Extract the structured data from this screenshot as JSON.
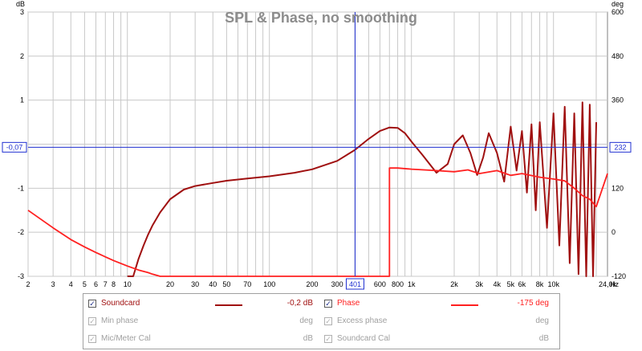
{
  "chart_data": {
    "type": "line",
    "title": "SPL & Phase, no smoothing",
    "xlabel": "Hz",
    "ylabel_left": "dB",
    "ylabel_right": "deg",
    "x_scale": "log",
    "xlim": [
      2,
      24000
    ],
    "ylim_left": [
      -3,
      3
    ],
    "ylim_right": [
      -120,
      600
    ],
    "grid": true,
    "x_ticks": [
      2,
      3,
      4,
      5,
      6,
      7,
      8,
      10,
      20,
      30,
      40,
      50,
      70,
      100,
      200,
      300,
      401,
      600,
      800,
      1000,
      2000,
      3000,
      4000,
      5000,
      6000,
      8000,
      10000,
      24000
    ],
    "x_tick_labels": [
      "2",
      "3",
      "4",
      "5",
      "6",
      "7",
      "8",
      "10",
      "20",
      "30",
      "40",
      "50",
      "70",
      "100",
      "200",
      "300",
      "401",
      "600",
      "800",
      "1k",
      "2k",
      "3k",
      "4k",
      "5k",
      "6k",
      "8k",
      "10k",
      "24,0k"
    ],
    "y_left_ticks": [
      3,
      2,
      1,
      0,
      -1,
      -2,
      -3
    ],
    "y_left_tick_labels": [
      "3",
      "2",
      "1",
      "",
      "-1",
      "-2",
      "-3"
    ],
    "y_right_ticks": [
      600,
      480,
      360,
      232,
      120,
      0,
      -120
    ],
    "y_right_tick_labels": [
      "600",
      "480",
      "360",
      "232",
      "120",
      "0",
      "-120"
    ],
    "cursor": {
      "x": 401,
      "y_left_label": "-0,07",
      "y_right_label": "232",
      "y_value": -0.07
    },
    "series": [
      {
        "name": "Soundcard",
        "axis": "left",
        "color": "#a01010",
        "x": [
          10,
          11,
          12,
          13,
          14,
          15,
          17,
          20,
          25,
          30,
          40,
          50,
          70,
          100,
          150,
          200,
          300,
          400,
          500,
          600,
          700,
          800,
          900,
          1000,
          1200,
          1500,
          1800,
          2000,
          2300,
          2600,
          2900,
          3200,
          3500,
          4000,
          4500,
          5000,
          5500,
          6000,
          6500,
          7000,
          7500,
          8000,
          9000,
          10000,
          11000,
          12000,
          13000,
          14000,
          15000,
          16000,
          17000,
          18000,
          19000,
          20000
        ],
        "y": [
          -3.35,
          -3.0,
          -2.6,
          -2.3,
          -2.05,
          -1.85,
          -1.55,
          -1.25,
          -1.03,
          -0.95,
          -0.88,
          -0.83,
          -0.78,
          -0.73,
          -0.65,
          -0.57,
          -0.38,
          -0.13,
          0.12,
          0.3,
          0.38,
          0.37,
          0.25,
          0.06,
          -0.25,
          -0.65,
          -0.45,
          0.0,
          0.2,
          -0.2,
          -0.7,
          -0.3,
          0.25,
          -0.2,
          -0.85,
          0.4,
          -0.6,
          0.3,
          -1.1,
          0.45,
          -1.5,
          0.5,
          -1.9,
          0.7,
          -2.3,
          0.85,
          -2.7,
          0.7,
          -2.95,
          0.95,
          -3.0,
          0.9,
          -3.0,
          0.5
        ]
      },
      {
        "name": "Phase",
        "axis": "right",
        "color": "#ff2020",
        "x": [
          2,
          3,
          4,
          5,
          6,
          7,
          8,
          10,
          12,
          14,
          15,
          16,
          17,
          18,
          700,
          700,
          800,
          1000,
          1500,
          2000,
          2500,
          3000,
          4000,
          5000,
          6000,
          8000,
          10000,
          12000,
          14000,
          16000,
          18000,
          20000,
          24000
        ],
        "y": [
          60,
          12,
          -20,
          -40,
          -55,
          -67,
          -77,
          -92,
          -103,
          -110,
          -114,
          -117,
          -120,
          -122,
          -120,
          175,
          175,
          172,
          168,
          165,
          170,
          160,
          168,
          155,
          160,
          150,
          145,
          140,
          120,
          100,
          90,
          70,
          160
        ]
      }
    ],
    "legend_items": [
      {
        "name": "Soundcard",
        "checked": true,
        "color": "#a01010",
        "value": "-0,2 dB"
      },
      {
        "name": "Phase",
        "checked": true,
        "color": "#ff2020",
        "value": "-175 deg"
      },
      {
        "name": "Min phase",
        "checked": true,
        "dim": true,
        "value": "deg"
      },
      {
        "name": "Excess phase",
        "checked": true,
        "dim": true,
        "value": "deg"
      },
      {
        "name": "Mic/Meter Cal",
        "checked": true,
        "dim": true,
        "value": "dB"
      },
      {
        "name": "Soundcard Cal",
        "checked": true,
        "dim": true,
        "value": "dB"
      }
    ]
  },
  "colors": {
    "grid": "#c8c8c8",
    "cursor": "#1f2fd0",
    "axis_frame": "#808080",
    "title": "#8c8c8c"
  }
}
